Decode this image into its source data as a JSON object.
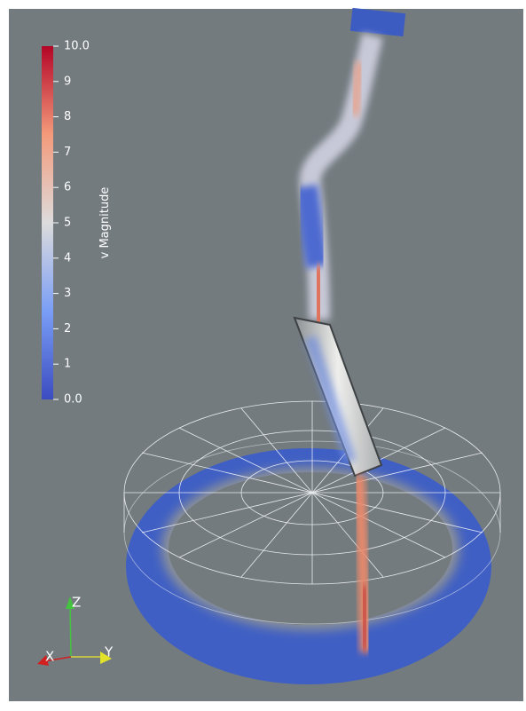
{
  "colorbar": {
    "title": "v Magnitude",
    "range": [
      0,
      10
    ],
    "ticks": [
      {
        "value": 0,
        "label": "0.0"
      },
      1,
      2,
      3,
      4,
      5,
      6,
      7,
      8,
      9,
      {
        "value": 10,
        "label": "10.0"
      }
    ]
  },
  "axes_triad": {
    "x": "X",
    "y": "Y",
    "z": "Z"
  }
}
